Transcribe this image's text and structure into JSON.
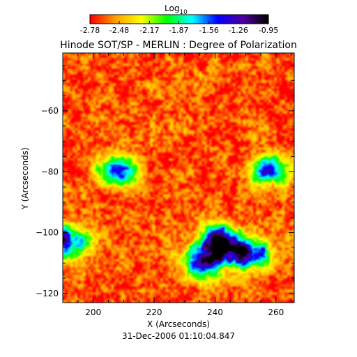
{
  "chart_data": {
    "type": "heatmap",
    "title": "Hinode SOT/SP - MERLIN : Degree of Polarization",
    "timestamp": "31-Dec-2006 01:10:04.847",
    "xlabel": "X (Arcseconds)",
    "ylabel": "Y (Arcseconds)",
    "xlim": [
      190,
      266
    ],
    "ylim": [
      -123,
      -41
    ],
    "x_ticks": [
      200,
      220,
      240,
      260
    ],
    "y_ticks": [
      -60,
      -80,
      -100,
      -120
    ],
    "colorbar": {
      "label_base": "Log",
      "label_sub": "10",
      "ticks": [
        "-2.78",
        "-2.48",
        "-2.17",
        "-1.87",
        "-1.56",
        "-1.26",
        "-0.95"
      ],
      "range": [
        -2.78,
        -0.95
      ],
      "colormap": [
        "#ff0000",
        "#ffa000",
        "#ffff00",
        "#00ff00",
        "#00ffff",
        "#0000ff",
        "#5000a0",
        "#000000"
      ]
    },
    "field_description_values": {
      "background_level": -2.65,
      "strong_regions": [
        {
          "x": 208,
          "y": -79,
          "peak": -1.3
        },
        {
          "x": 191,
          "y": -103,
          "peak": -1.1
        },
        {
          "x": 241,
          "y": -103,
          "peak": -1.05
        },
        {
          "x": 251,
          "y": -107,
          "peak": -1.1
        },
        {
          "x": 236,
          "y": -110,
          "peak": -1.2
        },
        {
          "x": 258,
          "y": -80,
          "peak": -1.5
        }
      ]
    }
  }
}
